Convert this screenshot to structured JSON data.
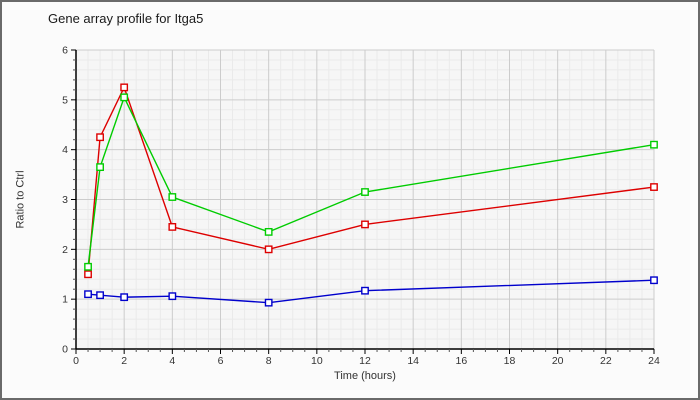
{
  "chart_data": {
    "type": "line",
    "title": "Gene array profile for Itga5",
    "xlabel": "Time (hours)",
    "ylabel": "Ratio to Ctrl",
    "x": [
      0.5,
      1,
      2,
      4,
      8,
      12,
      24
    ],
    "series": [
      {
        "name": "series-red",
        "color": "#dd0000",
        "marker": "open-square",
        "values": [
          1.5,
          4.25,
          5.25,
          2.45,
          2.0,
          2.5,
          3.25
        ]
      },
      {
        "name": "series-green",
        "color": "#00cc00",
        "marker": "open-square",
        "values": [
          1.65,
          3.65,
          5.05,
          3.05,
          2.35,
          3.15,
          4.1
        ]
      },
      {
        "name": "series-blue",
        "color": "#0000cc",
        "marker": "open-square",
        "values": [
          1.1,
          1.08,
          1.04,
          1.06,
          0.93,
          1.17,
          1.38
        ]
      }
    ],
    "xlim": [
      0,
      24
    ],
    "ylim": [
      0,
      6
    ],
    "x_ticks": [
      0,
      2,
      4,
      6,
      8,
      10,
      12,
      14,
      16,
      18,
      20,
      22,
      24
    ],
    "y_ticks": [
      0,
      1,
      2,
      3,
      4,
      5,
      6
    ],
    "x_minor_step": 0.5,
    "y_minor_step": 0.2,
    "grid": true,
    "legend": "none"
  },
  "style": {
    "frame_border": "#6a6a6a",
    "background": "#fbfbfb",
    "plot_background": "#f6f6f6",
    "major_grid": "#cccccc",
    "minor_grid": "#eaeaea",
    "axis_color": "#000000",
    "tick_text_color": "#333333"
  }
}
